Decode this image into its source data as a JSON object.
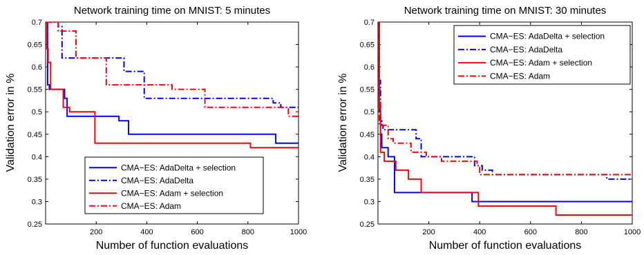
{
  "chart_data": [
    {
      "type": "line",
      "title": "Network training time on MNIST: 5 minutes",
      "xlabel": "Number of function evaluations",
      "ylabel": "Validation error in %",
      "xlim": [
        0,
        1000
      ],
      "ylim": [
        0.25,
        0.7
      ],
      "x_ticks": [
        200,
        400,
        600,
        800,
        1000
      ],
      "y_ticks": [
        0.25,
        0.3,
        0.35,
        0.4,
        0.45,
        0.5,
        0.55,
        0.6,
        0.65,
        0.7
      ],
      "grid": false,
      "legend_position": "bottom-right",
      "series": [
        {
          "name": "CMA−ES: AdaDelta + selection",
          "color": "#0000ff",
          "style": "solid",
          "x": [
            1,
            8,
            15,
            20,
            50,
            75,
            85,
            190,
            290,
            328,
            600,
            910,
            1000
          ],
          "y": [
            0.7,
            0.56,
            0.55,
            0.55,
            0.55,
            0.53,
            0.49,
            0.49,
            0.48,
            0.45,
            0.45,
            0.43,
            0.43
          ]
        },
        {
          "name": "CMA−ES: AdaDelta",
          "color": "#0000ff",
          "style": "dashdot",
          "x": [
            1,
            30,
            50,
            65,
            150,
            300,
            310,
            380,
            390,
            800,
            900,
            930,
            1000
          ],
          "y": [
            0.7,
            0.7,
            0.69,
            0.62,
            0.62,
            0.62,
            0.59,
            0.59,
            0.53,
            0.53,
            0.52,
            0.51,
            0.51
          ]
        },
        {
          "name": "CMA−ES: Adam + selection",
          "color": "#ff0000",
          "style": "solid",
          "x": [
            1,
            5,
            10,
            20,
            55,
            70,
            95,
            120,
            195,
            300,
            600,
            810,
            1000
          ],
          "y": [
            0.7,
            0.64,
            0.61,
            0.55,
            0.55,
            0.51,
            0.5,
            0.5,
            0.43,
            0.43,
            0.43,
            0.42,
            0.42
          ]
        },
        {
          "name": "CMA−ES: Adam",
          "color": "#ff0000",
          "style": "dashdot",
          "x": [
            1,
            10,
            40,
            50,
            115,
            120,
            230,
            240,
            400,
            500,
            630,
            800,
            960,
            1000
          ],
          "y": [
            0.7,
            0.7,
            0.7,
            0.68,
            0.68,
            0.62,
            0.62,
            0.56,
            0.56,
            0.55,
            0.51,
            0.51,
            0.49,
            0.49
          ]
        }
      ]
    },
    {
      "type": "line",
      "title": "Network training time on MNIST: 30 minutes",
      "xlabel": "Number of function evaluations",
      "ylabel": "Validation error in %",
      "xlim": [
        0,
        1000
      ],
      "ylim": [
        0.25,
        0.7
      ],
      "x_ticks": [
        200,
        400,
        600,
        800,
        1000
      ],
      "y_ticks": [
        0.25,
        0.3,
        0.35,
        0.4,
        0.45,
        0.5,
        0.55,
        0.6,
        0.65,
        0.7
      ],
      "grid": false,
      "legend_position": "top-right",
      "series": [
        {
          "name": "CMA−ES: AdaDelta + selection",
          "color": "#0000ff",
          "style": "solid",
          "x": [
            1,
            5,
            10,
            15,
            40,
            65,
            100,
            370,
            380,
            600,
            1000
          ],
          "y": [
            0.7,
            0.5,
            0.45,
            0.42,
            0.4,
            0.32,
            0.32,
            0.3,
            0.3,
            0.3,
            0.3
          ]
        },
        {
          "name": "CMA−ES: AdaDelta",
          "color": "#0000ff",
          "style": "dashdot",
          "x": [
            1,
            5,
            10,
            15,
            20,
            120,
            150,
            170,
            200,
            380,
            410,
            450,
            800,
            900,
            1000
          ],
          "y": [
            0.7,
            0.57,
            0.48,
            0.47,
            0.46,
            0.46,
            0.44,
            0.4,
            0.4,
            0.38,
            0.37,
            0.36,
            0.36,
            0.35,
            0.35
          ]
        },
        {
          "name": "CMA−ES: Adam + selection",
          "color": "#ff0000",
          "style": "solid",
          "x": [
            1,
            5,
            10,
            25,
            70,
            120,
            160,
            170,
            390,
            395,
            700,
            1000
          ],
          "y": [
            0.7,
            0.52,
            0.41,
            0.39,
            0.37,
            0.35,
            0.35,
            0.32,
            0.32,
            0.29,
            0.27,
            0.27
          ]
        },
        {
          "name": "CMA−ES: Adam",
          "color": "#ff0000",
          "style": "dashdot",
          "x": [
            1,
            5,
            15,
            40,
            60,
            130,
            190,
            250,
            390,
            400,
            1000
          ],
          "y": [
            0.7,
            0.47,
            0.47,
            0.44,
            0.43,
            0.41,
            0.4,
            0.39,
            0.38,
            0.36,
            0.36
          ]
        }
      ]
    }
  ]
}
